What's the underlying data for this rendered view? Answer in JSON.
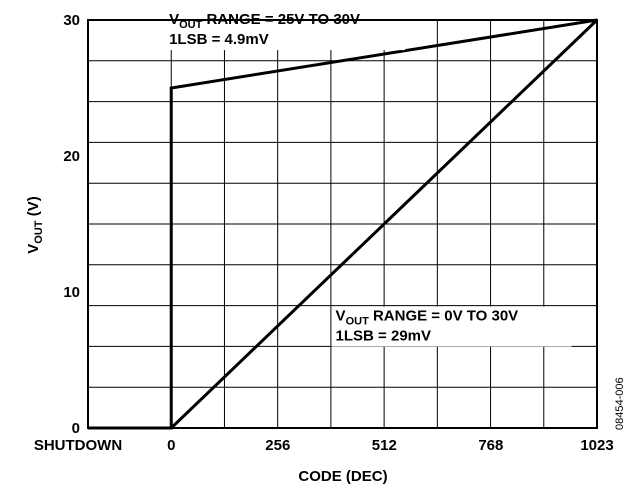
{
  "chart_data": {
    "type": "line",
    "xlabel": "CODE (DEC)",
    "ylabel_main": "V",
    "ylabel_sub": "OUT",
    "ylabel_unit": " (V)",
    "xlim": [
      -200,
      1023
    ],
    "ylim": [
      0,
      30
    ],
    "x_ticks": [
      {
        "value": -200,
        "label": "SHUTDOWN"
      },
      {
        "value": 0,
        "label": "0"
      },
      {
        "value": 256,
        "label": "256"
      },
      {
        "value": 512,
        "label": "512"
      },
      {
        "value": 768,
        "label": "768"
      },
      {
        "value": 1023,
        "label": "1023"
      }
    ],
    "y_ticks": [
      {
        "value": 0,
        "label": "0"
      },
      {
        "value": 10,
        "label": "10"
      },
      {
        "value": 20,
        "label": "20"
      },
      {
        "value": 30,
        "label": "30"
      }
    ],
    "grid": true,
    "series": [
      {
        "x": [
          -200,
          0,
          0,
          1023
        ],
        "y": [
          0,
          0,
          25,
          30
        ]
      },
      {
        "x": [
          -200,
          0,
          1023
        ],
        "y": [
          0,
          0,
          30
        ]
      }
    ],
    "annotations": [
      {
        "main": "V",
        "sub": "OUT",
        "rest": " RANGE = 25V TO 30V",
        "line2": "1LSB = 4.9mV",
        "x": -10,
        "y": 29.7
      },
      {
        "main": "V",
        "sub": "OUT",
        "rest": " RANGE = 0V TO 30V",
        "line2": "1LSB = 29mV",
        "x": 390,
        "y": 7.9
      }
    ],
    "figure_id": "08454-006"
  }
}
